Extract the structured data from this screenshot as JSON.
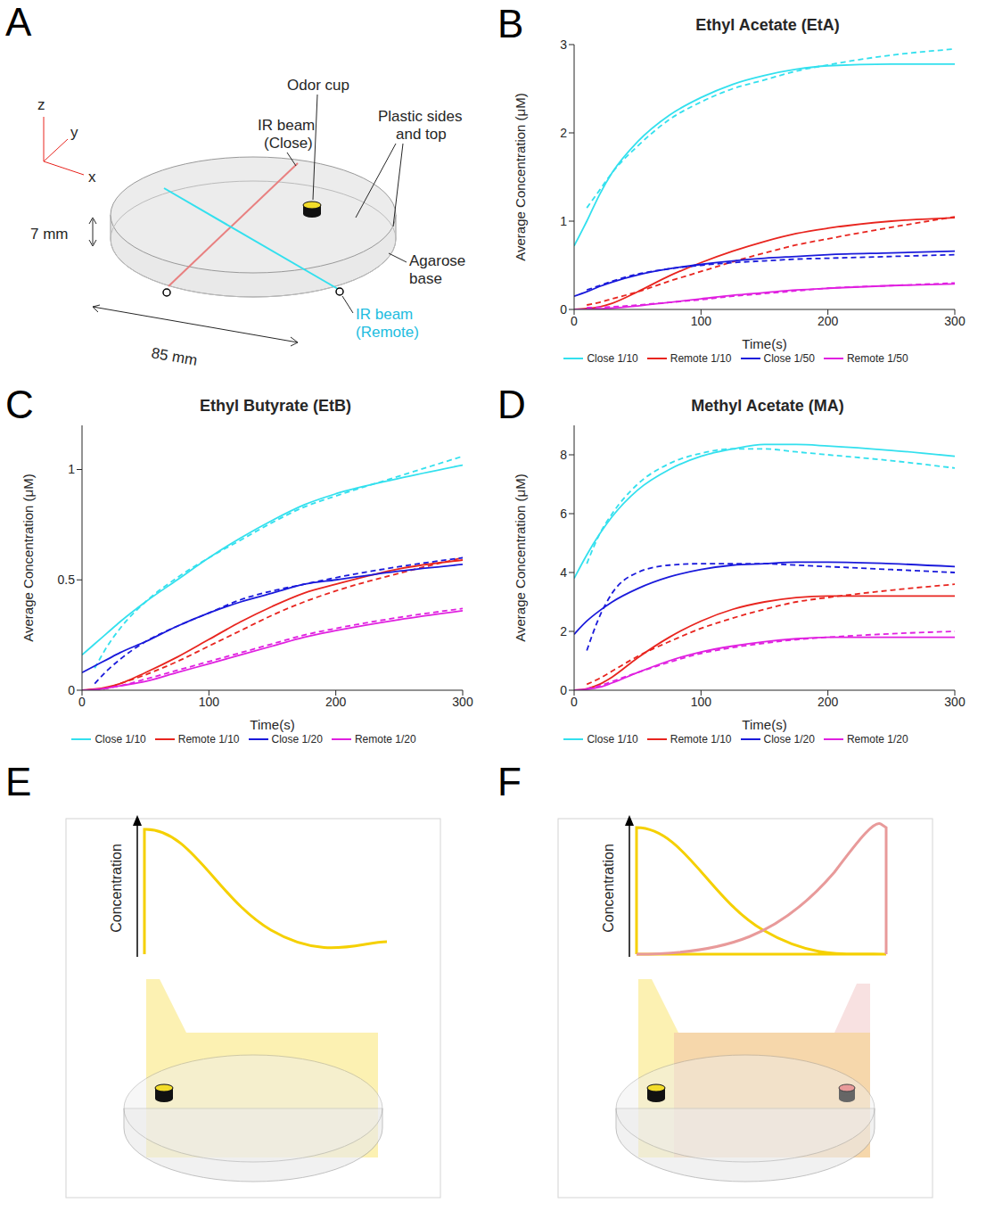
{
  "chart_data": [
    {
      "panel": "B",
      "type": "line",
      "title": "Ethyl Acetate (EtA)",
      "x_label": "Time(s)",
      "y_label": "Average Concentration (μM)",
      "x": [
        0,
        10,
        20,
        30,
        50,
        75,
        100,
        125,
        150,
        175,
        200,
        250,
        300
      ],
      "xlim": [
        0,
        300
      ],
      "xticks": [
        0,
        100,
        200,
        300
      ],
      "ylim": [
        0,
        3
      ],
      "yticks": [
        0,
        1,
        2,
        3
      ],
      "grid": false,
      "legend": "bottom",
      "series": [
        {
          "name": "Close 1/10",
          "color": "#33e0ee",
          "line_style": "solid",
          "values": [
            0.72,
            1.0,
            1.3,
            1.55,
            1.9,
            2.2,
            2.4,
            2.55,
            2.65,
            2.72,
            2.76,
            2.78,
            2.78
          ]
        },
        {
          "color": "#33e0ee",
          "line_style": "dashed",
          "values": [
            null,
            1.15,
            1.35,
            1.55,
            1.85,
            2.15,
            2.35,
            2.5,
            2.6,
            2.7,
            2.77,
            2.88,
            2.95
          ]
        },
        {
          "name": "Remote 1/10",
          "color": "#e8251f",
          "line_style": "solid",
          "values": [
            0,
            0.01,
            0.03,
            0.07,
            0.2,
            0.38,
            0.53,
            0.66,
            0.77,
            0.86,
            0.92,
            1.0,
            1.04
          ]
        },
        {
          "color": "#e8251f",
          "line_style": "dashed",
          "values": [
            null,
            0.05,
            0.08,
            0.12,
            0.2,
            0.32,
            0.43,
            0.54,
            0.64,
            0.73,
            0.8,
            0.93,
            1.05
          ]
        },
        {
          "name": "Close 1/50",
          "color": "#1a1adb",
          "line_style": "solid",
          "values": [
            0.15,
            0.2,
            0.26,
            0.31,
            0.39,
            0.46,
            0.51,
            0.55,
            0.58,
            0.6,
            0.62,
            0.64,
            0.66
          ]
        },
        {
          "color": "#1a1adb",
          "line_style": "dashed",
          "values": [
            null,
            0.22,
            0.27,
            0.32,
            0.4,
            0.46,
            0.5,
            0.53,
            0.55,
            0.57,
            0.58,
            0.6,
            0.62
          ]
        },
        {
          "name": "Remote 1/50",
          "color": "#e020e0",
          "line_style": "solid",
          "values": [
            0,
            0.002,
            0.007,
            0.015,
            0.04,
            0.08,
            0.12,
            0.16,
            0.19,
            0.22,
            0.24,
            0.27,
            0.29
          ]
        },
        {
          "color": "#e020e0",
          "line_style": "dashed",
          "values": [
            null,
            0.02,
            0.025,
            0.03,
            0.05,
            0.08,
            0.11,
            0.15,
            0.18,
            0.21,
            0.24,
            0.27,
            0.3
          ]
        }
      ]
    },
    {
      "panel": "C",
      "type": "line",
      "title": "Ethyl Butyrate (EtB)",
      "x_label": "Time(s)",
      "y_label": "Average Concentration (μM)",
      "x": [
        0,
        10,
        20,
        30,
        50,
        75,
        100,
        125,
        150,
        175,
        200,
        250,
        300
      ],
      "xlim": [
        0,
        300
      ],
      "xticks": [
        0,
        100,
        200,
        300
      ],
      "ylim": [
        0,
        1.2
      ],
      "yticks": [
        0,
        0.5,
        1
      ],
      "grid": false,
      "legend": "bottom",
      "series": [
        {
          "name": "Close 1/10",
          "color": "#33e0ee",
          "line_style": "solid",
          "values": [
            0.16,
            0.21,
            0.26,
            0.31,
            0.4,
            0.5,
            0.6,
            0.69,
            0.77,
            0.84,
            0.89,
            0.96,
            1.02
          ]
        },
        {
          "color": "#33e0ee",
          "line_style": "dashed",
          "values": [
            null,
            0.1,
            0.2,
            0.28,
            0.4,
            0.51,
            0.6,
            0.68,
            0.76,
            0.83,
            0.88,
            0.97,
            1.06
          ]
        },
        {
          "name": "Remote 1/10",
          "color": "#e8251f",
          "line_style": "solid",
          "values": [
            0,
            0.005,
            0.015,
            0.03,
            0.08,
            0.15,
            0.23,
            0.31,
            0.38,
            0.44,
            0.48,
            0.55,
            0.59
          ]
        },
        {
          "color": "#e8251f",
          "line_style": "dashed",
          "values": [
            null,
            0,
            0.01,
            0.03,
            0.07,
            0.13,
            0.2,
            0.27,
            0.34,
            0.4,
            0.45,
            0.53,
            0.6
          ]
        },
        {
          "name": "Close 1/20",
          "color": "#1a1adb",
          "line_style": "solid",
          "values": [
            0.08,
            0.11,
            0.14,
            0.17,
            0.22,
            0.29,
            0.35,
            0.4,
            0.44,
            0.48,
            0.5,
            0.54,
            0.57
          ]
        },
        {
          "color": "#1a1adb",
          "line_style": "dashed",
          "values": [
            null,
            0.03,
            0.09,
            0.14,
            0.22,
            0.29,
            0.35,
            0.41,
            0.45,
            0.48,
            0.51,
            0.56,
            0.6
          ]
        },
        {
          "name": "Remote 1/20",
          "color": "#e020e0",
          "line_style": "solid",
          "values": [
            0,
            0.003,
            0.01,
            0.02,
            0.04,
            0.08,
            0.12,
            0.16,
            0.2,
            0.24,
            0.27,
            0.32,
            0.36
          ]
        },
        {
          "color": "#e020e0",
          "line_style": "dashed",
          "values": [
            null,
            0,
            0.01,
            0.02,
            0.05,
            0.09,
            0.13,
            0.17,
            0.21,
            0.25,
            0.28,
            0.33,
            0.37
          ]
        }
      ]
    },
    {
      "panel": "D",
      "type": "line",
      "title": "Methyl Acetate (MA)",
      "x_label": "Time(s)",
      "y_label": "Average Concentration (μM)",
      "x": [
        0,
        10,
        20,
        30,
        50,
        75,
        100,
        125,
        150,
        175,
        200,
        250,
        300
      ],
      "xlim": [
        0,
        300
      ],
      "xticks": [
        0,
        100,
        200,
        300
      ],
      "ylim": [
        0,
        9
      ],
      "yticks": [
        0,
        2,
        4,
        6,
        8
      ],
      "grid": false,
      "legend": "bottom",
      "series": [
        {
          "name": "Close 1/10",
          "color": "#33e0ee",
          "line_style": "solid",
          "values": [
            3.8,
            4.6,
            5.3,
            5.9,
            6.8,
            7.5,
            7.95,
            8.2,
            8.35,
            8.35,
            8.3,
            8.15,
            7.95
          ]
        },
        {
          "color": "#33e0ee",
          "line_style": "dashed",
          "values": [
            null,
            4.3,
            5.3,
            6.0,
            7.0,
            7.7,
            8.05,
            8.2,
            8.2,
            8.1,
            8.0,
            7.8,
            7.55
          ]
        },
        {
          "name": "Remote 1/10",
          "color": "#e8251f",
          "line_style": "solid",
          "values": [
            0,
            0.05,
            0.2,
            0.45,
            1.1,
            1.8,
            2.35,
            2.75,
            3.0,
            3.15,
            3.2,
            3.2,
            3.2
          ]
        },
        {
          "color": "#e8251f",
          "line_style": "dashed",
          "values": [
            null,
            0.2,
            0.4,
            0.65,
            1.15,
            1.65,
            2.1,
            2.45,
            2.75,
            3.0,
            3.15,
            3.4,
            3.6
          ]
        },
        {
          "name": "Close 1/20",
          "color": "#1a1adb",
          "line_style": "solid",
          "values": [
            1.9,
            2.35,
            2.7,
            3.0,
            3.45,
            3.85,
            4.1,
            4.25,
            4.3,
            4.35,
            4.35,
            4.3,
            4.2
          ]
        },
        {
          "color": "#1a1adb",
          "line_style": "dashed",
          "values": [
            null,
            1.35,
            2.5,
            3.3,
            4.0,
            4.25,
            4.3,
            4.3,
            4.3,
            4.25,
            4.2,
            4.1,
            4.0
          ]
        },
        {
          "name": "Remote 1/20",
          "color": "#e020e0",
          "line_style": "solid",
          "values": [
            0,
            0.03,
            0.1,
            0.25,
            0.6,
            1.0,
            1.3,
            1.5,
            1.65,
            1.75,
            1.8,
            1.8,
            1.8
          ]
        },
        {
          "color": "#e020e0",
          "line_style": "dashed",
          "values": [
            null,
            0.05,
            0.15,
            0.3,
            0.6,
            0.95,
            1.25,
            1.45,
            1.6,
            1.72,
            1.8,
            1.92,
            2.0
          ]
        }
      ]
    }
  ],
  "diagrams": {
    "A": {
      "panel": "A",
      "axes": [
        "z",
        "y",
        "x"
      ],
      "ir_close": [
        "IR beam",
        "(Close)"
      ],
      "odor_cup": "Odor cup",
      "plastic": [
        "Plastic sides",
        "and top"
      ],
      "height": "7 mm",
      "agarose": [
        "Agarose",
        "base"
      ],
      "ir_remote": [
        "IR beam",
        "(Remote)"
      ],
      "width": "85 mm"
    },
    "E": {
      "panel": "E",
      "y_label": "Concentration"
    },
    "F": {
      "panel": "F",
      "y_label": "Concentration"
    }
  }
}
